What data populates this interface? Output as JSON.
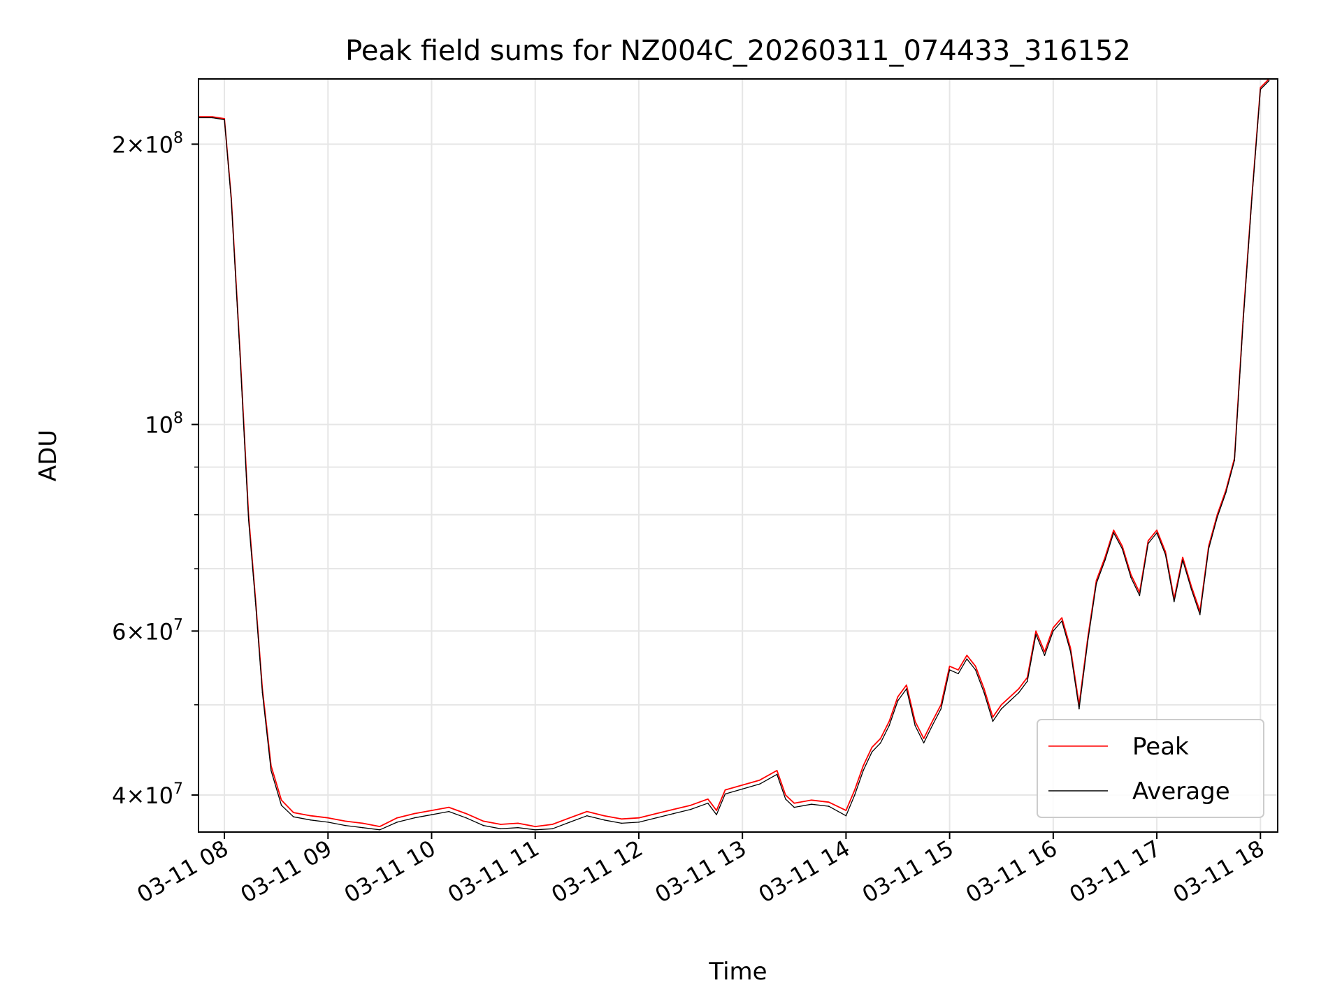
{
  "chart_data": {
    "type": "line",
    "title": "Peak field sums for NZ004C_20260311_074433_316152",
    "xlabel": "Time",
    "ylabel": "ADU",
    "yscale": "log",
    "ylim": [
      36500000,
      235000000
    ],
    "xlim": [
      "2026-03-11T07:45",
      "2026-03-11T18:10"
    ],
    "grid": true,
    "legend_position": "lower right",
    "x_ticks": [
      {
        "value": "2026-03-11T08:00",
        "label": "03-11 08"
      },
      {
        "value": "2026-03-11T09:00",
        "label": "03-11 09"
      },
      {
        "value": "2026-03-11T10:00",
        "label": "03-11 10"
      },
      {
        "value": "2026-03-11T11:00",
        "label": "03-11 11"
      },
      {
        "value": "2026-03-11T12:00",
        "label": "03-11 12"
      },
      {
        "value": "2026-03-11T13:00",
        "label": "03-11 13"
      },
      {
        "value": "2026-03-11T14:00",
        "label": "03-11 14"
      },
      {
        "value": "2026-03-11T15:00",
        "label": "03-11 15"
      },
      {
        "value": "2026-03-11T16:00",
        "label": "03-11 16"
      },
      {
        "value": "2026-03-11T17:00",
        "label": "03-11 17"
      },
      {
        "value": "2026-03-11T18:00",
        "label": "03-11 18"
      }
    ],
    "y_major_ticks": [
      {
        "value": 40000000,
        "mantissa": "4",
        "base": "10",
        "exp": "7"
      },
      {
        "value": 60000000,
        "mantissa": "6",
        "base": "10",
        "exp": "7"
      },
      {
        "value": 100000000,
        "mantissa": "",
        "base": "10",
        "exp": "8"
      },
      {
        "value": 200000000,
        "mantissa": "2",
        "base": "10",
        "exp": "8"
      }
    ],
    "y_minor_ticks": [
      50000000,
      70000000,
      80000000,
      90000000
    ],
    "series": [
      {
        "name": "Peak",
        "color": "#ff0000",
        "x": [
          "07:45",
          "07:53",
          "08:00",
          "08:04",
          "08:09",
          "08:14",
          "08:18",
          "08:22",
          "08:27",
          "08:33",
          "08:40",
          "08:50",
          "09:00",
          "09:10",
          "09:20",
          "09:30",
          "09:40",
          "09:50",
          "10:00",
          "10:10",
          "10:20",
          "10:30",
          "10:40",
          "10:50",
          "11:00",
          "11:10",
          "11:20",
          "11:30",
          "11:40",
          "11:50",
          "12:00",
          "12:10",
          "12:20",
          "12:30",
          "12:40",
          "12:45",
          "12:50",
          "13:00",
          "13:10",
          "13:20",
          "13:25",
          "13:30",
          "13:40",
          "13:50",
          "14:00",
          "14:05",
          "14:10",
          "14:15",
          "14:20",
          "14:25",
          "14:30",
          "14:35",
          "14:40",
          "14:45",
          "14:50",
          "14:55",
          "15:00",
          "15:05",
          "15:10",
          "15:15",
          "15:20",
          "15:25",
          "15:30",
          "15:35",
          "15:40",
          "15:45",
          "15:50",
          "15:55",
          "16:00",
          "16:05",
          "16:10",
          "16:15",
          "16:20",
          "16:25",
          "16:30",
          "16:35",
          "16:40",
          "16:45",
          "16:50",
          "16:55",
          "17:00",
          "17:05",
          "17:10",
          "17:15",
          "17:20",
          "17:25",
          "17:30",
          "17:35",
          "17:40",
          "17:45",
          "17:50",
          "17:55",
          "18:00",
          "18:05"
        ],
        "values": [
          214000000,
          214000000,
          213000000,
          175000000,
          120000000,
          80000000,
          65000000,
          52000000,
          43000000,
          39500000,
          38300000,
          38000000,
          37800000,
          37500000,
          37300000,
          37000000,
          37800000,
          38200000,
          38500000,
          38800000,
          38200000,
          37500000,
          37200000,
          37300000,
          37000000,
          37200000,
          37800000,
          38400000,
          38000000,
          37700000,
          37800000,
          38200000,
          38600000,
          39000000,
          39600000,
          38500000,
          40500000,
          41000000,
          41500000,
          42500000,
          40000000,
          39200000,
          39500000,
          39300000,
          38500000,
          40500000,
          43000000,
          45000000,
          46000000,
          48000000,
          51000000,
          52500000,
          48000000,
          46000000,
          48000000,
          50000000,
          55000000,
          54500000,
          56500000,
          55000000,
          52000000,
          48500000,
          50000000,
          51000000,
          52000000,
          53500000,
          60000000,
          57000000,
          60500000,
          62000000,
          57500000,
          50000000,
          59000000,
          68000000,
          72000000,
          77000000,
          74000000,
          69000000,
          66000000,
          75000000,
          77000000,
          73000000,
          65000000,
          72000000,
          67000000,
          63000000,
          74000000,
          80000000,
          85000000,
          92000000,
          130000000,
          175000000,
          230000000,
          235000000
        ]
      },
      {
        "name": "Average",
        "color": "#000000",
        "x": [
          "07:45",
          "07:53",
          "08:00",
          "08:04",
          "08:09",
          "08:14",
          "08:18",
          "08:22",
          "08:27",
          "08:33",
          "08:40",
          "08:50",
          "09:00",
          "09:10",
          "09:20",
          "09:30",
          "09:40",
          "09:50",
          "10:00",
          "10:10",
          "10:20",
          "10:30",
          "10:40",
          "10:50",
          "11:00",
          "11:10",
          "11:20",
          "11:30",
          "11:40",
          "11:50",
          "12:00",
          "12:10",
          "12:20",
          "12:30",
          "12:40",
          "12:45",
          "12:50",
          "13:00",
          "13:10",
          "13:20",
          "13:25",
          "13:30",
          "13:40",
          "13:50",
          "14:00",
          "14:05",
          "14:10",
          "14:15",
          "14:20",
          "14:25",
          "14:30",
          "14:35",
          "14:40",
          "14:45",
          "14:50",
          "14:55",
          "15:00",
          "15:05",
          "15:10",
          "15:15",
          "15:20",
          "15:25",
          "15:30",
          "15:35",
          "15:40",
          "15:45",
          "15:50",
          "15:55",
          "16:00",
          "16:05",
          "16:10",
          "16:15",
          "16:20",
          "16:25",
          "16:30",
          "16:35",
          "16:40",
          "16:45",
          "16:50",
          "16:55",
          "17:00",
          "17:05",
          "17:10",
          "17:15",
          "17:20",
          "17:25",
          "17:30",
          "17:35",
          "17:40",
          "17:45",
          "17:50",
          "17:55",
          "18:00",
          "18:05"
        ],
        "values": [
          213500000,
          213500000,
          212500000,
          174000000,
          119000000,
          79000000,
          64500000,
          51500000,
          42500000,
          39000000,
          37900000,
          37600000,
          37400000,
          37100000,
          36900000,
          36700000,
          37400000,
          37800000,
          38100000,
          38400000,
          37800000,
          37100000,
          36800000,
          36900000,
          36700000,
          36800000,
          37400000,
          38000000,
          37600000,
          37300000,
          37400000,
          37800000,
          38200000,
          38600000,
          39200000,
          38100000,
          40100000,
          40600000,
          41100000,
          42100000,
          39600000,
          38800000,
          39100000,
          38900000,
          38000000,
          40000000,
          42500000,
          44500000,
          45500000,
          47500000,
          50500000,
          52000000,
          47500000,
          45500000,
          47500000,
          49500000,
          54500000,
          54000000,
          56000000,
          54500000,
          51500000,
          48000000,
          49500000,
          50500000,
          51500000,
          53000000,
          59500000,
          56500000,
          60000000,
          61500000,
          57000000,
          49500000,
          58500000,
          67500000,
          71500000,
          76500000,
          73500000,
          68500000,
          65500000,
          74500000,
          76500000,
          72500000,
          64500000,
          71500000,
          66500000,
          62500000,
          73500000,
          79500000,
          84500000,
          91500000,
          129000000,
          174000000,
          229000000,
          234000000
        ]
      }
    ]
  }
}
